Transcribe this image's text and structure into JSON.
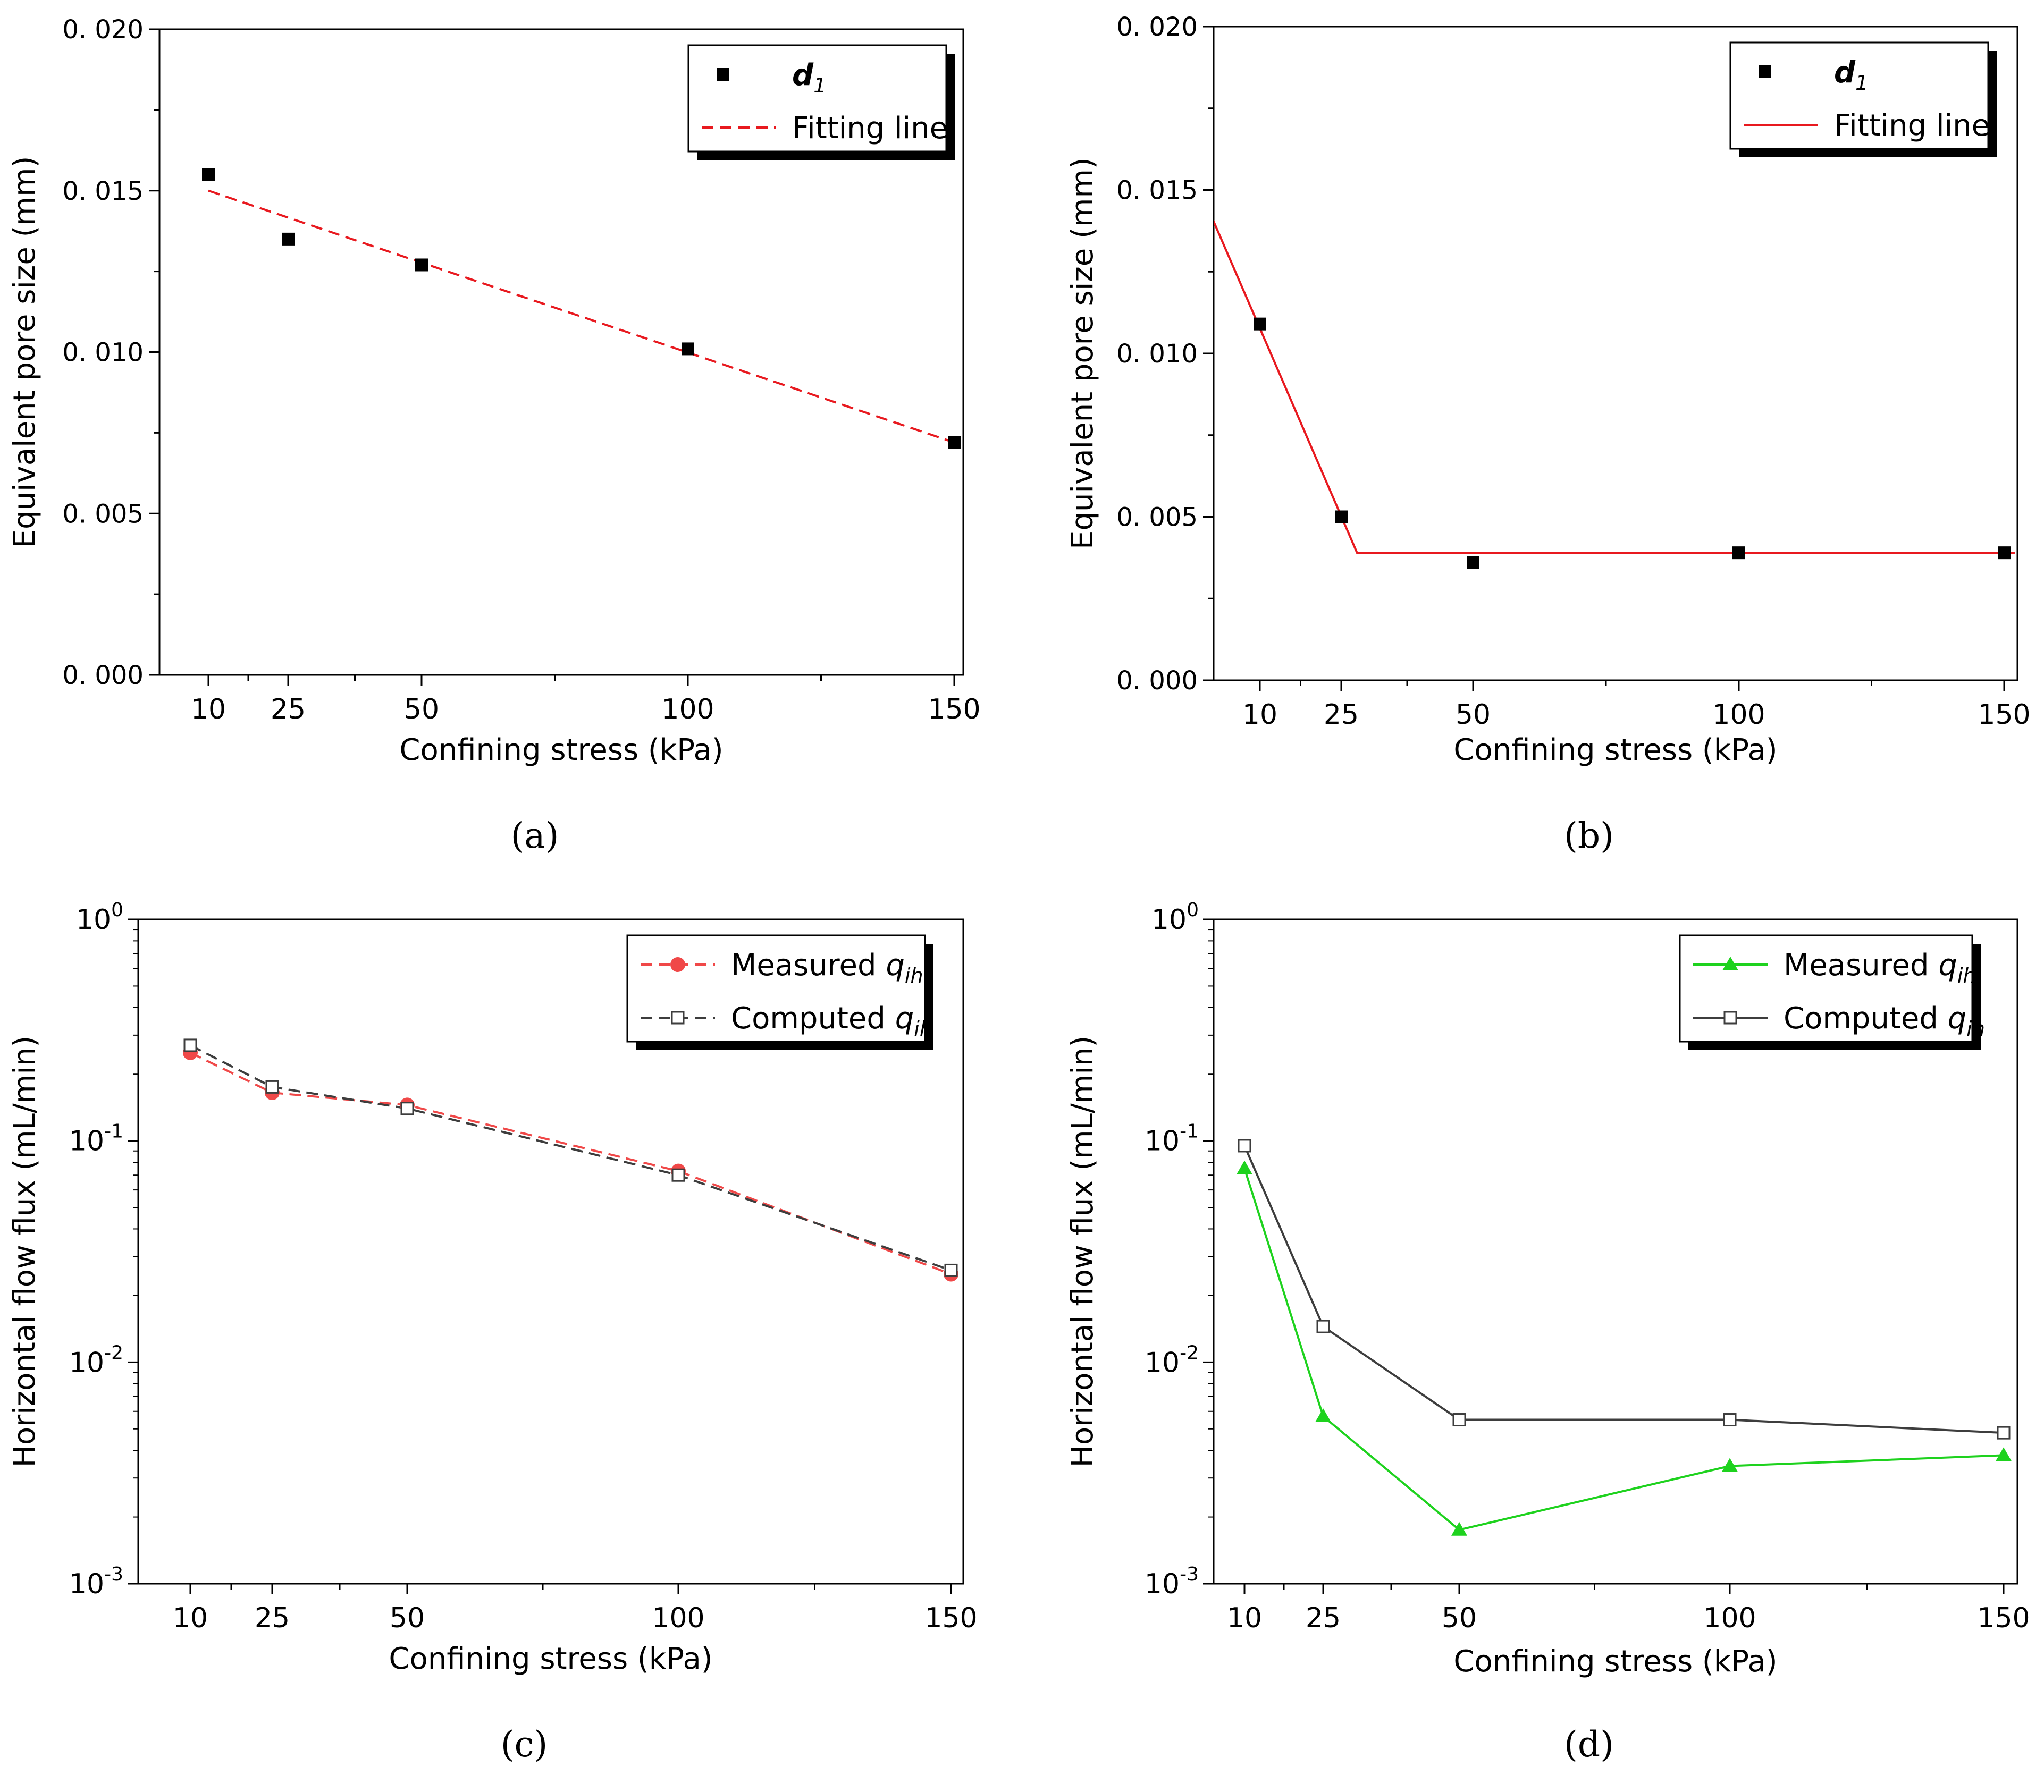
{
  "chart_data": [
    {
      "panel": "a",
      "panel_label": "(a)",
      "type": "scatter",
      "xlabel": "Confining stress (kPa)",
      "ylabel": "Equivalent pore size (mm)",
      "x_ticks": [
        10,
        25,
        50,
        100,
        150
      ],
      "x_tick_labels": [
        "10",
        "25",
        "50",
        "100",
        "150"
      ],
      "xlim": [
        0,
        152
      ],
      "y_scale": "linear",
      "ylim": [
        0,
        0.02
      ],
      "y_ticks": [
        0,
        0.005,
        0.01,
        0.015,
        0.02
      ],
      "y_tick_labels": [
        "0. 000",
        "0. 005",
        "0. 010",
        "0. 015",
        "0. 020"
      ],
      "legend": {
        "position": "top-right",
        "entries": [
          {
            "label": "d",
            "subscript": "1",
            "italic": true,
            "marker": "square",
            "color": "#000000"
          },
          {
            "label": "Fitting line",
            "line": "dashed",
            "color": "#e8191f"
          }
        ]
      },
      "series": [
        {
          "name": "d1",
          "kind": "markers",
          "marker": "square",
          "color": "#000000",
          "x": [
            10,
            25,
            50,
            100,
            150
          ],
          "y": [
            0.0155,
            0.0135,
            0.0127,
            0.0101,
            0.0072
          ]
        },
        {
          "name": "Fitting line",
          "kind": "line",
          "dash": "dashed",
          "color": "#e8191f",
          "x": [
            10,
            150
          ],
          "y": [
            0.015,
            0.0072
          ]
        }
      ]
    },
    {
      "panel": "b",
      "panel_label": "(b)",
      "type": "scatter",
      "xlabel": "Confining stress (kPa)",
      "ylabel": "Equivalent pore size (mm)",
      "x_ticks": [
        10,
        25,
        50,
        100,
        150
      ],
      "x_tick_labels": [
        "10",
        "25",
        "50",
        "100",
        "150"
      ],
      "xlim": [
        0,
        152
      ],
      "y_scale": "linear",
      "ylim": [
        0,
        0.02
      ],
      "y_ticks": [
        0,
        0.005,
        0.01,
        0.015,
        0.02
      ],
      "y_tick_labels": [
        "0. 000",
        "0. 005",
        "0. 010",
        "0. 015",
        "0. 020"
      ],
      "legend": {
        "position": "top-right",
        "entries": [
          {
            "label": "d",
            "subscript": "1",
            "italic": true,
            "marker": "square",
            "color": "#000000"
          },
          {
            "label": "Fitting line",
            "line": "solid",
            "color": "#e8191f"
          }
        ]
      },
      "series": [
        {
          "name": "d1",
          "kind": "markers",
          "marker": "square",
          "color": "#000000",
          "x": [
            10,
            25,
            50,
            100,
            150
          ],
          "y": [
            0.0109,
            0.005,
            0.0036,
            0.0039,
            0.0039
          ]
        },
        {
          "name": "Fitting line",
          "kind": "line",
          "dash": "solid",
          "color": "#e8191f",
          "x": [
            0,
            28,
            152
          ],
          "y": [
            0.0146,
            0.0039,
            0.0039
          ]
        }
      ]
    },
    {
      "panel": "c",
      "panel_label": "(c)",
      "type": "line",
      "xlabel": "Confining stress (kPa)",
      "ylabel": "Horizontal  flow flux (mL/min)",
      "x_ticks": [
        10,
        25,
        50,
        100,
        150
      ],
      "x_tick_labels": [
        "10",
        "25",
        "50",
        "100",
        "150"
      ],
      "xlim": [
        0,
        152
      ],
      "y_scale": "log",
      "ylim": [
        0.001,
        1
      ],
      "y_ticks": [
        0.001,
        0.01,
        0.1,
        1
      ],
      "y_tick_labels": [
        {
          "base": "10",
          "exp": "-3"
        },
        {
          "base": "10",
          "exp": "-2"
        },
        {
          "base": "10",
          "exp": "-1"
        },
        {
          "base": "10",
          "exp": "0"
        }
      ],
      "legend": {
        "position": "top-right",
        "entries": [
          {
            "label": "Measured ",
            "q": "q",
            "subscript": "ih",
            "marker": "circle",
            "line": "dashed",
            "color": "#f04848"
          },
          {
            "label": "Computed ",
            "q": "q",
            "subscript": "ih",
            "marker": "open-square",
            "line": "dashed",
            "color": "#3d3d3d"
          }
        ]
      },
      "series": [
        {
          "name": "Measured qih",
          "kind": "line+markers",
          "marker": "circle",
          "dash": "dashed",
          "color": "#f04848",
          "x": [
            10,
            25,
            50,
            100,
            150
          ],
          "y": [
            0.25,
            0.165,
            0.145,
            0.073,
            0.025
          ]
        },
        {
          "name": "Computed qih",
          "kind": "line+markers",
          "marker": "open-square",
          "dash": "dashed",
          "color": "#3d3d3d",
          "x": [
            10,
            25,
            50,
            100,
            150
          ],
          "y": [
            0.27,
            0.175,
            0.14,
            0.07,
            0.026
          ]
        }
      ]
    },
    {
      "panel": "d",
      "panel_label": "(d)",
      "type": "line",
      "xlabel": "Confining stress (kPa)",
      "ylabel": "Horizontal  flow flux (mL/min)",
      "x_ticks": [
        10,
        25,
        50,
        100,
        150
      ],
      "x_tick_labels": [
        "10",
        "25",
        "50",
        "100",
        "150"
      ],
      "xlim": [
        0,
        152
      ],
      "y_scale": "log",
      "ylim": [
        0.001,
        1
      ],
      "y_ticks": [
        0.001,
        0.01,
        0.1,
        1
      ],
      "y_tick_labels": [
        {
          "base": "10",
          "exp": "-3"
        },
        {
          "base": "10",
          "exp": "-2"
        },
        {
          "base": "10",
          "exp": "-1"
        },
        {
          "base": "10",
          "exp": "0"
        }
      ],
      "legend": {
        "position": "top-right",
        "entries": [
          {
            "label": "Measured ",
            "q": "q",
            "subscript": "ih",
            "marker": "triangle",
            "line": "solid",
            "color": "#1ed21e"
          },
          {
            "label": "Computed ",
            "q": "q",
            "subscript": "ih",
            "marker": "open-square",
            "line": "solid",
            "color": "#3d3d3d"
          }
        ]
      },
      "series": [
        {
          "name": "Measured qih",
          "kind": "line+markers",
          "marker": "triangle",
          "dash": "solid",
          "color": "#1ed21e",
          "x": [
            10,
            25,
            50,
            100,
            150
          ],
          "y": [
            0.075,
            0.0057,
            0.00175,
            0.0034,
            0.0038
          ]
        },
        {
          "name": "Computed qih",
          "kind": "line+markers",
          "marker": "open-square",
          "dash": "solid",
          "color": "#3d3d3d",
          "x": [
            10,
            25,
            50,
            100,
            150
          ],
          "y": [
            0.095,
            0.0145,
            0.0055,
            0.0055,
            0.0048
          ]
        }
      ]
    }
  ]
}
